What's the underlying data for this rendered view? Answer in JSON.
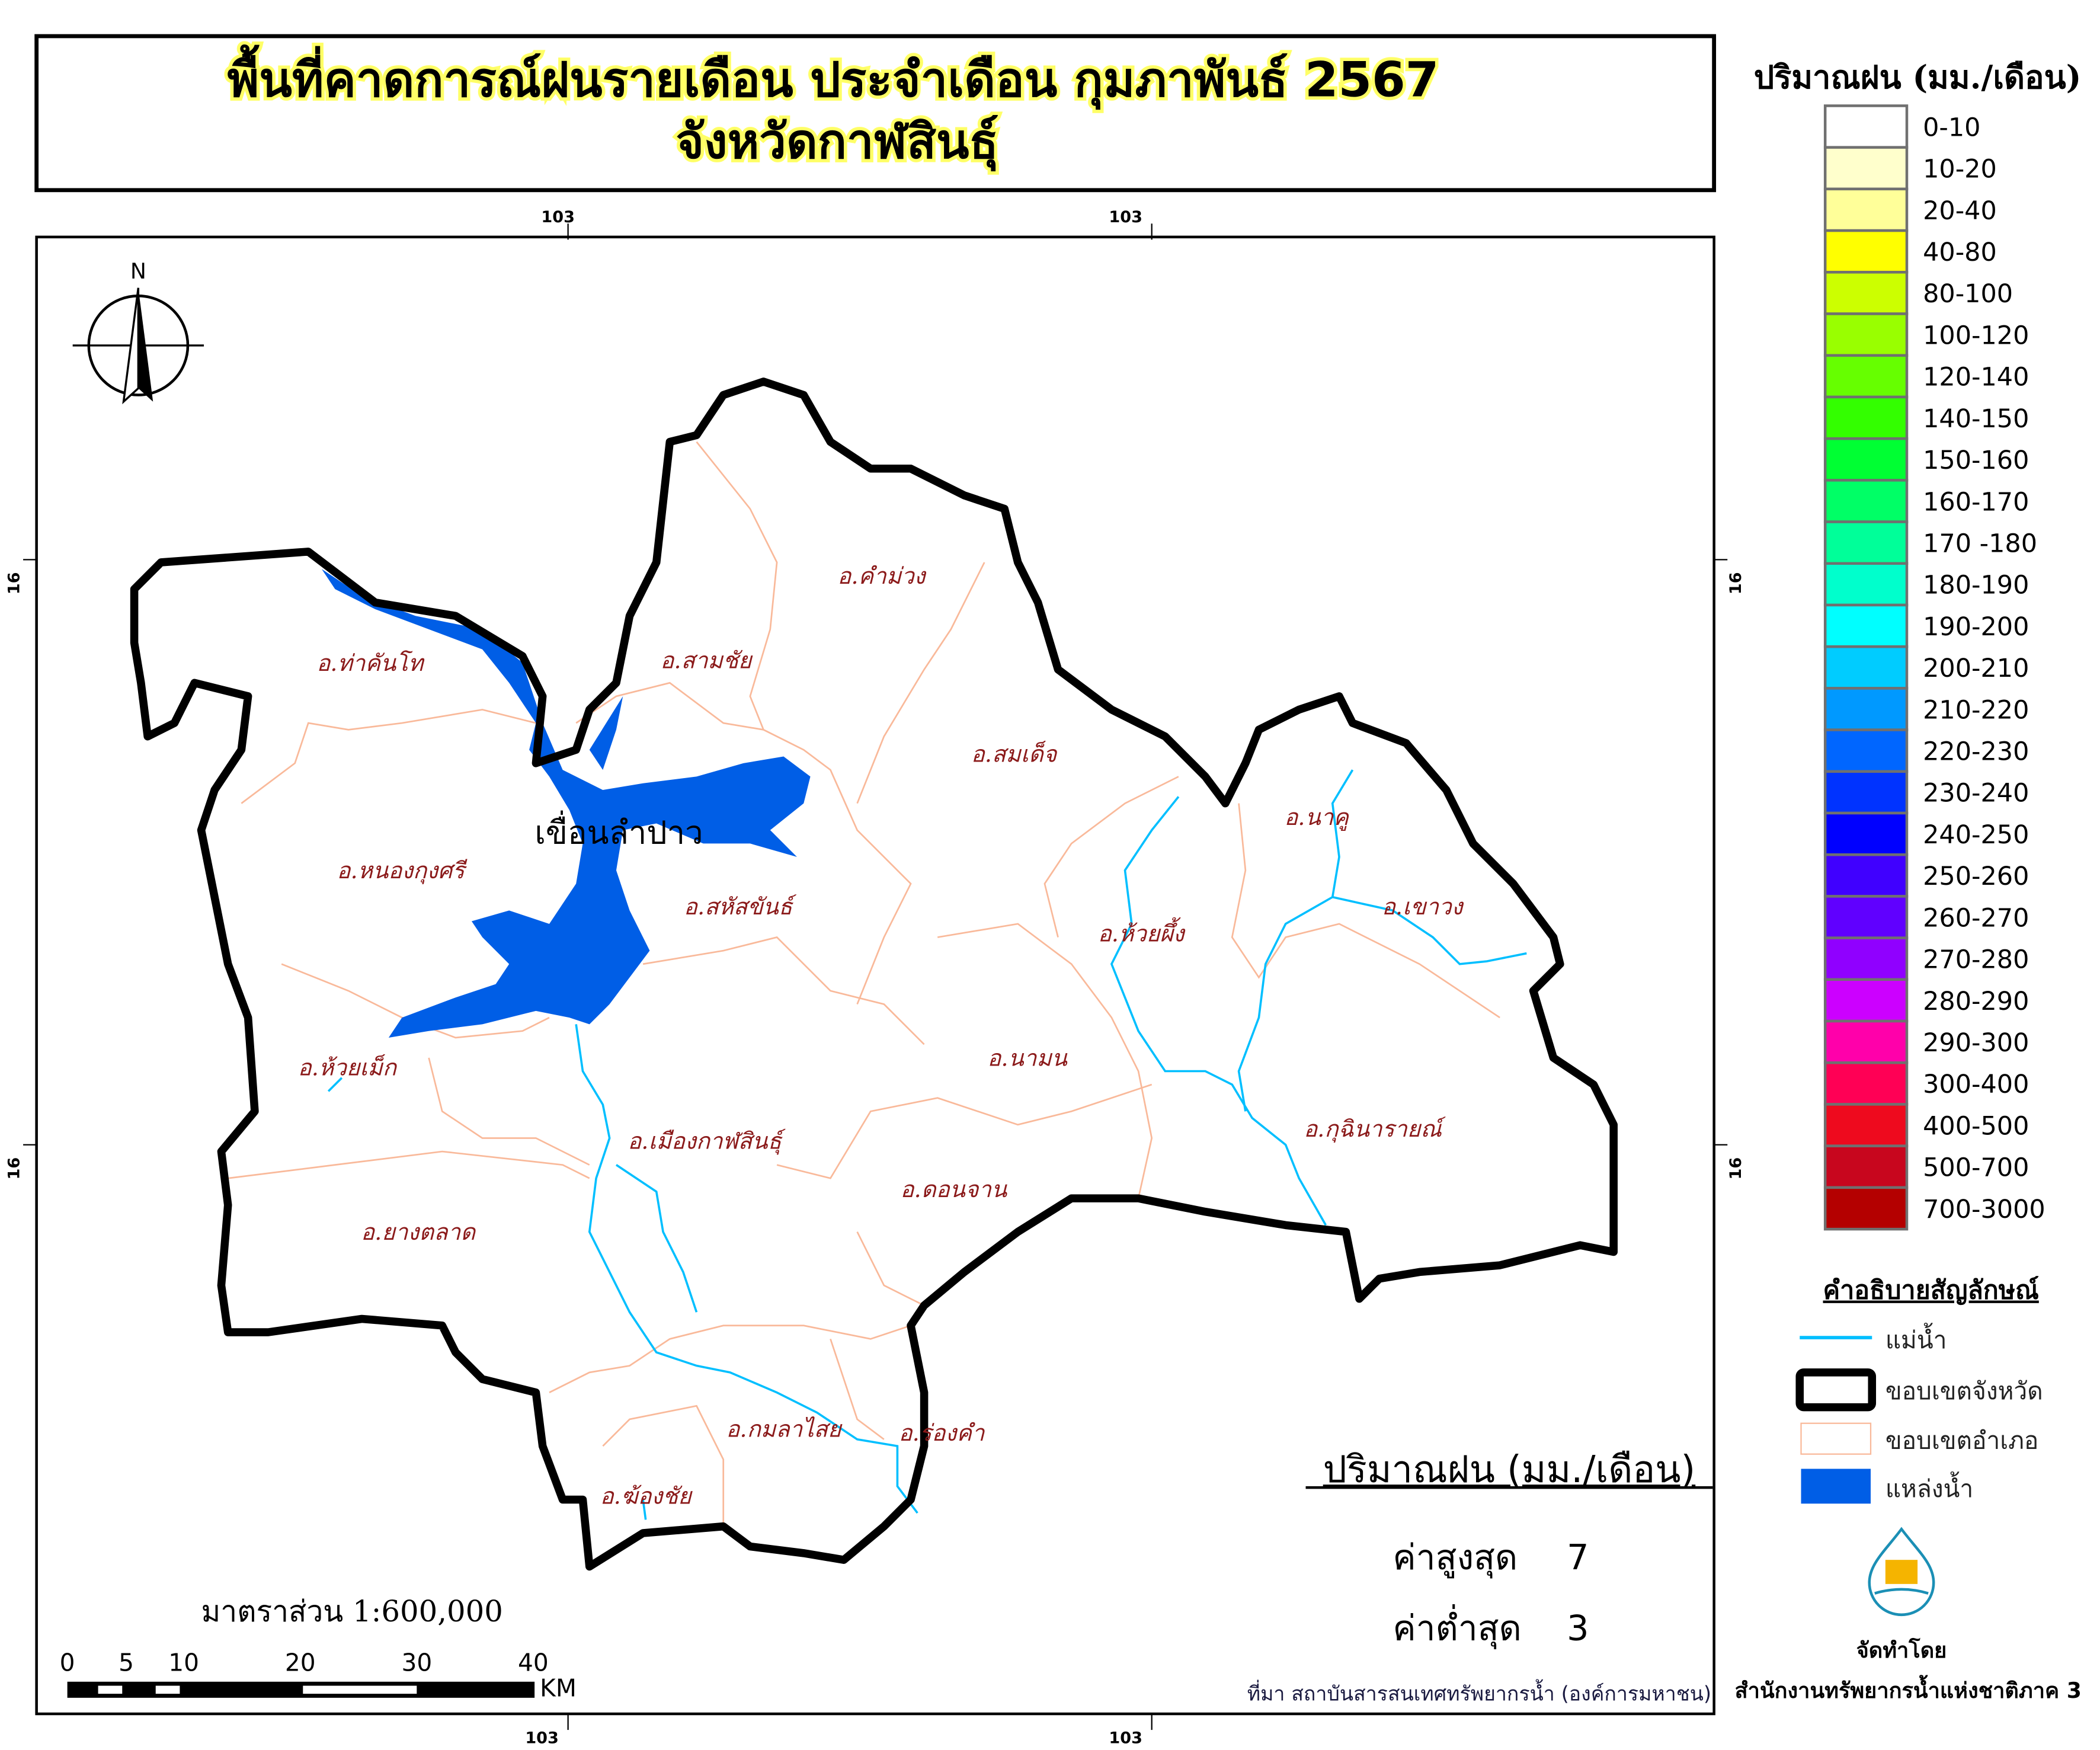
{
  "title": {
    "line1": "พื้นที่คาดการณ์ฝนรายเดือน ประจำเดือน กุมภาพันธ์ 2567",
    "line2": "จังหวัดกาฬสินธุ์"
  },
  "grid_ticks": {
    "top": [
      "103",
      "103"
    ],
    "bottom": [
      "103",
      "103"
    ],
    "left": [
      "16",
      "16"
    ],
    "right": [
      "16",
      "16"
    ]
  },
  "north_arrow": {
    "label": "N"
  },
  "reservoir_label": "เขื่อนลำปาว",
  "districts": [
    "อ.คำม่วง",
    "อ.สามชัย",
    "อ.ท่าคันโท",
    "อ.สมเด็จ",
    "อ.หนองกุงศรี",
    "อ.สหัสขันธ์",
    "อ.นาคู",
    "อ.เขาวง",
    "อ.ห้วยผึ้ง",
    "อ.ห้วยเม็ก",
    "อ.นามน",
    "อ.กุฉินารายณ์",
    "อ.เมืองกาฬสินธุ์",
    "อ.ดอนจาน",
    "อ.ยางตลาด",
    "อ.กมลาไสย",
    "อ.ร่องคำ",
    "อ.ฆ้องชัย"
  ],
  "legend": {
    "title": "ปริมาณฝน (มม./เดือน)",
    "classes": [
      {
        "label": "0-10",
        "color": "#ffffff"
      },
      {
        "label": "10-20",
        "color": "#ffffcc"
      },
      {
        "label": "20-40",
        "color": "#ffff99"
      },
      {
        "label": "40-80",
        "color": "#ffff00"
      },
      {
        "label": "80-100",
        "color": "#ccff00"
      },
      {
        "label": "100-120",
        "color": "#99ff00"
      },
      {
        "label": "120-140",
        "color": "#66ff00"
      },
      {
        "label": "140-150",
        "color": "#33ff00"
      },
      {
        "label": "150-160",
        "color": "#00ff33"
      },
      {
        "label": "160-170",
        "color": "#00ff66"
      },
      {
        "label": "170 -180",
        "color": "#00ff99"
      },
      {
        "label": "180-190",
        "color": "#00ffcc"
      },
      {
        "label": "190-200",
        "color": "#00ffff"
      },
      {
        "label": "200-210",
        "color": "#00ccff"
      },
      {
        "label": "210-220",
        "color": "#0099ff"
      },
      {
        "label": "220-230",
        "color": "#0066ff"
      },
      {
        "label": "230-240",
        "color": "#0033ff"
      },
      {
        "label": "240-250",
        "color": "#0000ff"
      },
      {
        "label": "250-260",
        "color": "#4000ff"
      },
      {
        "label": "260-270",
        "color": "#6000ff"
      },
      {
        "label": "270-280",
        "color": "#9000ff"
      },
      {
        "label": "280-290",
        "color": "#cc00ff"
      },
      {
        "label": "290-300",
        "color": "#ff00aa"
      },
      {
        "label": "300-400",
        "color": "#ff0055"
      },
      {
        "label": "400-500",
        "color": "#ee0a1e"
      },
      {
        "label": "500-700",
        "color": "#c8061e"
      },
      {
        "label": "700-3000",
        "color": "#b40000"
      }
    ]
  },
  "symbols": {
    "title": "คำอธิบายสัญลักษณ์",
    "river": "แม่น้ำ",
    "province_boundary": "ขอบเขตจังหวัด",
    "district_boundary": "ขอบเขตอำเภอ",
    "water_body": "แหล่งน้ำ",
    "colors": {
      "river": "#00bfff",
      "province": "#000000",
      "district": "#f9b99a",
      "water": "#005ee6"
    }
  },
  "stats": {
    "title": "ปริมาณฝน (มม./เดือน)",
    "max_label": "ค่าสูงสุด",
    "max_value": "7",
    "min_label": "ค่าต่ำสุด",
    "min_value": "3"
  },
  "scale": {
    "text": "มาตราส่วน 1:600,000",
    "ticks": [
      "0",
      "5",
      "10",
      "20",
      "30",
      "40"
    ],
    "unit": "KM"
  },
  "source": "ที่มา  สถาบันสารสนเทศทรัพยากรน้ำ (องค์การมหาชน)",
  "producer": {
    "label": "จัดทำโดย",
    "name": "สำนักงานทรัพยากรน้ำแห่งชาติภาค 3",
    "logo_text": "สำนักงานทรัพยากรน้ำแห่งชาติ"
  }
}
